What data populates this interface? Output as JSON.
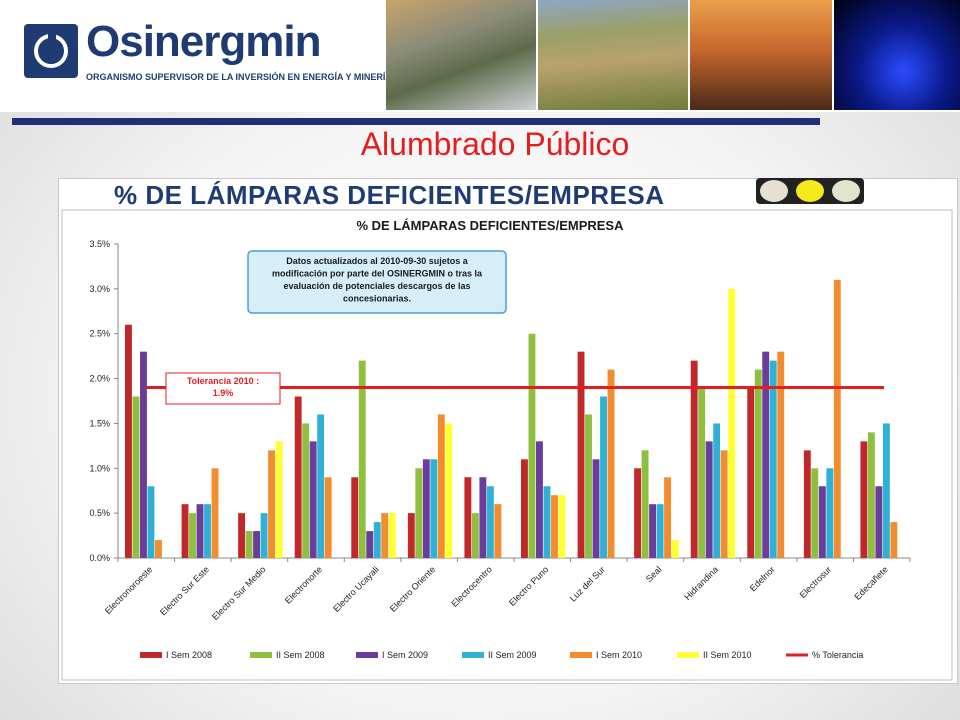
{
  "header": {
    "brand": "Osinergmin",
    "subtitle": "ORGANISMO SUPERVISOR DE LA INVERSIÓN EN ENERGÍA Y MINERÍA",
    "accent_color": "#1f3b73"
  },
  "slide": {
    "title": "Alumbrado Público",
    "title_color": "#e41e1e",
    "panel_heading": "% DE LÁMPARAS DEFICIENTES/EMPRESA"
  },
  "chart_data": {
    "type": "bar",
    "title": "% DE LÁMPARAS DEFICIENTES/EMPRESA",
    "xlabel": "",
    "ylabel": "",
    "ylim": [
      0,
      3.5
    ],
    "yticks": [
      "0.0%",
      "0.5%",
      "1.0%",
      "1.5%",
      "2.0%",
      "2.5%",
      "3.0%",
      "3.5%"
    ],
    "grid": false,
    "legend_position": "bottom",
    "categories": [
      "Electronoroeste",
      "Electro Sur Este",
      "Electro Sur Medio",
      "Electronorte",
      "Electro Ucayali",
      "Electro Oriente",
      "Electrocentro",
      "Electro Puno",
      "Luz del Sur",
      "Seal",
      "Hidrandina",
      "Edelnor",
      "Electrosur",
      "Edecañete"
    ],
    "series": [
      {
        "name": "I Sem 2008",
        "color": "#c0282b",
        "values": [
          2.6,
          0.6,
          0.5,
          1.8,
          0.9,
          0.5,
          0.9,
          1.1,
          2.3,
          1.0,
          2.2,
          1.9,
          1.2,
          1.3
        ]
      },
      {
        "name": "II Sem 2008",
        "color": "#8fbf3f",
        "values": [
          1.8,
          0.5,
          0.3,
          1.5,
          2.2,
          1.0,
          0.5,
          2.5,
          1.6,
          1.2,
          1.9,
          2.1,
          1.0,
          1.4
        ]
      },
      {
        "name": "I Sem 2009",
        "color": "#6a3d9a",
        "values": [
          2.3,
          0.6,
          0.3,
          1.3,
          0.3,
          1.1,
          0.9,
          1.3,
          1.1,
          0.6,
          1.3,
          2.3,
          0.8,
          0.8
        ]
      },
      {
        "name": "II Sem 2009",
        "color": "#2fb1d6",
        "values": [
          0.8,
          0.6,
          0.5,
          1.6,
          0.4,
          1.1,
          0.8,
          0.8,
          1.8,
          0.6,
          1.5,
          2.2,
          1.0,
          1.5
        ]
      },
      {
        "name": "I Sem 2010",
        "color": "#f38b2f",
        "values": [
          0.2,
          1.0,
          1.2,
          0.9,
          0.5,
          1.6,
          0.6,
          0.7,
          2.1,
          0.9,
          1.2,
          2.3,
          3.1,
          0.4
        ]
      },
      {
        "name": "II Sem 2010",
        "color": "#ffff33",
        "values": [
          null,
          null,
          1.3,
          null,
          0.5,
          1.5,
          null,
          0.7,
          null,
          0.2,
          3.0,
          null,
          null,
          null
        ]
      }
    ],
    "reference_line": {
      "name": "% Tolerancia",
      "value": 1.9,
      "color": "#e41e1e"
    },
    "annotations": {
      "note": [
        "Datos actualizados al 2010-09-30  sujetos a",
        "modificación por parte del OSINERGMIN o tras la",
        "evaluación de potenciales descargos de las",
        "concesionarias."
      ],
      "tolerance_label": [
        "Tolerancia 2010 :",
        "1.9%"
      ]
    }
  }
}
